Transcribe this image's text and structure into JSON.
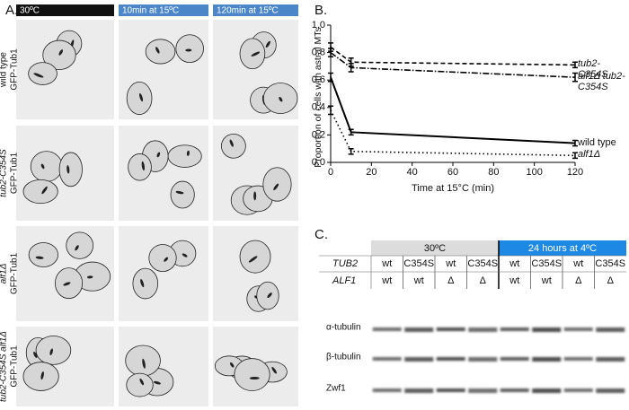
{
  "panel_a": {
    "label": "A.",
    "columns": [
      "30ºC",
      "10min at 15ºC",
      "120min at 15ºC"
    ],
    "rows": [
      [
        "wild type",
        "GFP-Tub1"
      ],
      [
        "tub2-C354S",
        "GFP-Tub1"
      ],
      [
        "alf1Δ",
        "GFP-Tub1"
      ],
      [
        "tub2-C354S alf1Δ",
        "GFP-Tub1"
      ]
    ]
  },
  "chart_data": {
    "type": "line",
    "label": "B.",
    "xlabel": "Time at 15°C (min)",
    "ylabel": "Proportion of cells with astral MTs",
    "x": [
      0,
      10,
      120
    ],
    "xlim": [
      0,
      120
    ],
    "xticks": [
      0,
      20,
      40,
      60,
      80,
      100,
      120
    ],
    "ylim": [
      0,
      1
    ],
    "yticks": [
      {
        "value": 0,
        "label": "0.0"
      },
      0.2,
      0.4,
      0.6,
      0.8,
      {
        "value": 1,
        "label": "1.0"
      }
    ],
    "series": [
      {
        "name": "tub2-C354S",
        "color": "#000000",
        "line_style": "dashed",
        "values": [
          0.84,
          0.73,
          0.71
        ],
        "errors": [
          0.03,
          0.03,
          0.02
        ]
      },
      {
        "name": "alf1Δ tub2-C354S",
        "color": "#000000",
        "line_style": "dashdot",
        "values": [
          0.8,
          0.69,
          0.62
        ],
        "errors": [
          0.03,
          0.03,
          0.03
        ]
      },
      {
        "name": "wild type",
        "color": "#000000",
        "line_style": "solid",
        "values": [
          0.62,
          0.22,
          0.14
        ],
        "errors": [
          0.03,
          0.02,
          0.02
        ]
      },
      {
        "name": "alf1Δ",
        "color": "#000000",
        "line_style": "dotted",
        "values": [
          0.38,
          0.08,
          0.05
        ],
        "errors": [
          0.03,
          0.02,
          0.02
        ]
      }
    ]
  },
  "panel_c": {
    "label": "C.",
    "conditions": [
      "30ºC",
      "24 hours at 4ºC"
    ],
    "genotype_rows": [
      {
        "gene": "TUB2",
        "lanes": [
          "wt",
          "C354S",
          "wt",
          "C354S",
          "wt",
          "C354S",
          "wt",
          "C354S"
        ]
      },
      {
        "gene": "ALF1",
        "lanes": [
          "wt",
          "wt",
          "Δ",
          "Δ",
          "wt",
          "wt",
          "Δ",
          "Δ"
        ]
      }
    ],
    "blots": [
      "α-tubulin",
      "β-tubulin",
      "Zwf1"
    ]
  }
}
